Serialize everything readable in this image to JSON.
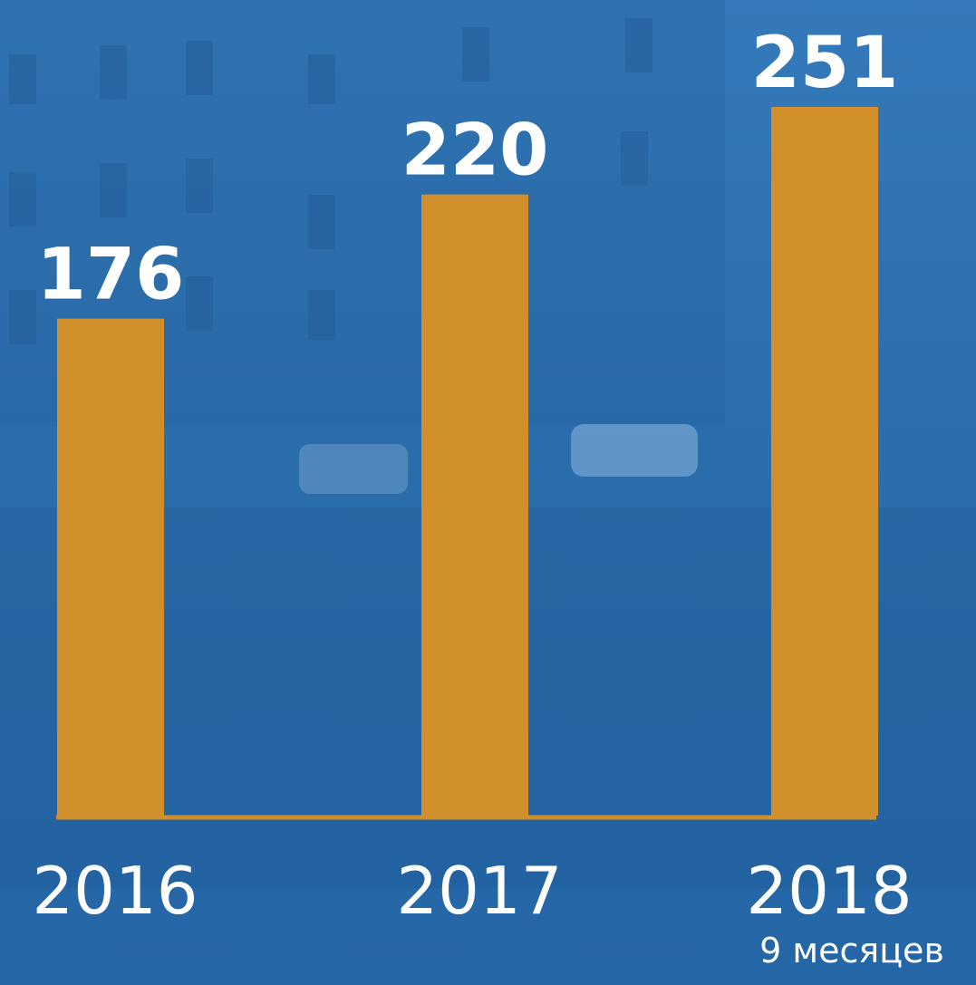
{
  "chart_data": {
    "type": "bar",
    "categories": [
      "2016",
      "2017",
      "2018"
    ],
    "values": [
      176,
      220,
      251
    ],
    "color": "#d08f2a",
    "annotation": "9 месяцев"
  }
}
